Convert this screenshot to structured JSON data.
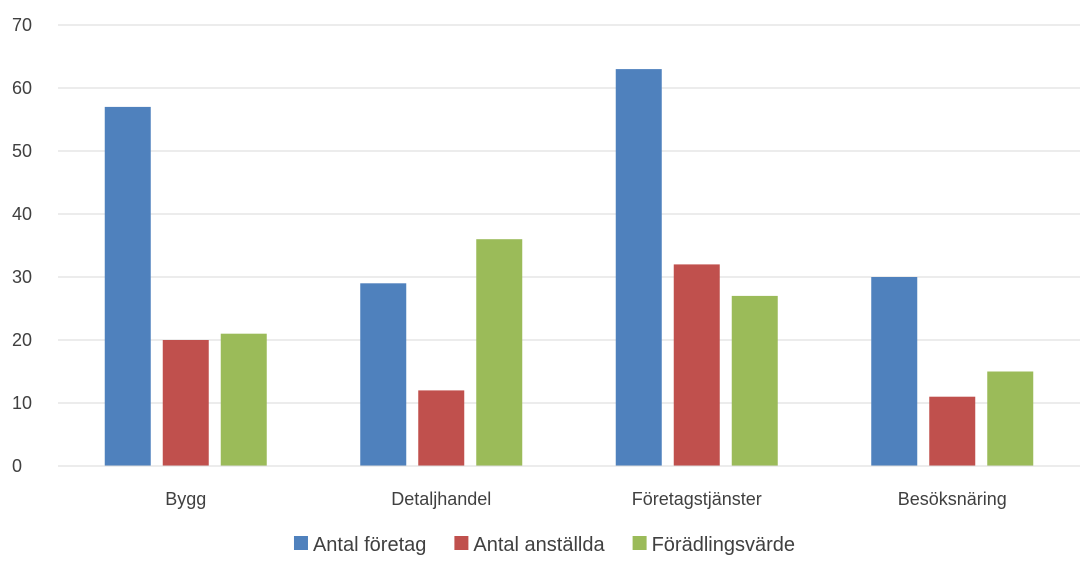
{
  "chart_data": {
    "type": "bar",
    "categories": [
      "Bygg",
      "Detaljhandel",
      "Företagstjänster",
      "Besöksnäring"
    ],
    "series": [
      {
        "name": "Antal företag",
        "values": [
          57,
          29,
          63,
          30
        ],
        "color": "#4F81BD"
      },
      {
        "name": "Antal anställda",
        "values": [
          20,
          12,
          32,
          11
        ],
        "color": "#C0504D"
      },
      {
        "name": "Förädlingsvärde",
        "values": [
          21,
          36,
          27,
          15
        ],
        "color": "#9BBB59"
      }
    ],
    "ylim": [
      0,
      70
    ],
    "yticks": [
      0,
      10,
      20,
      30,
      40,
      50,
      60,
      70
    ],
    "grid": true,
    "legend": "bottom",
    "gridline_color": "#D9D9D9",
    "axis_color": "#D9D9D9"
  }
}
